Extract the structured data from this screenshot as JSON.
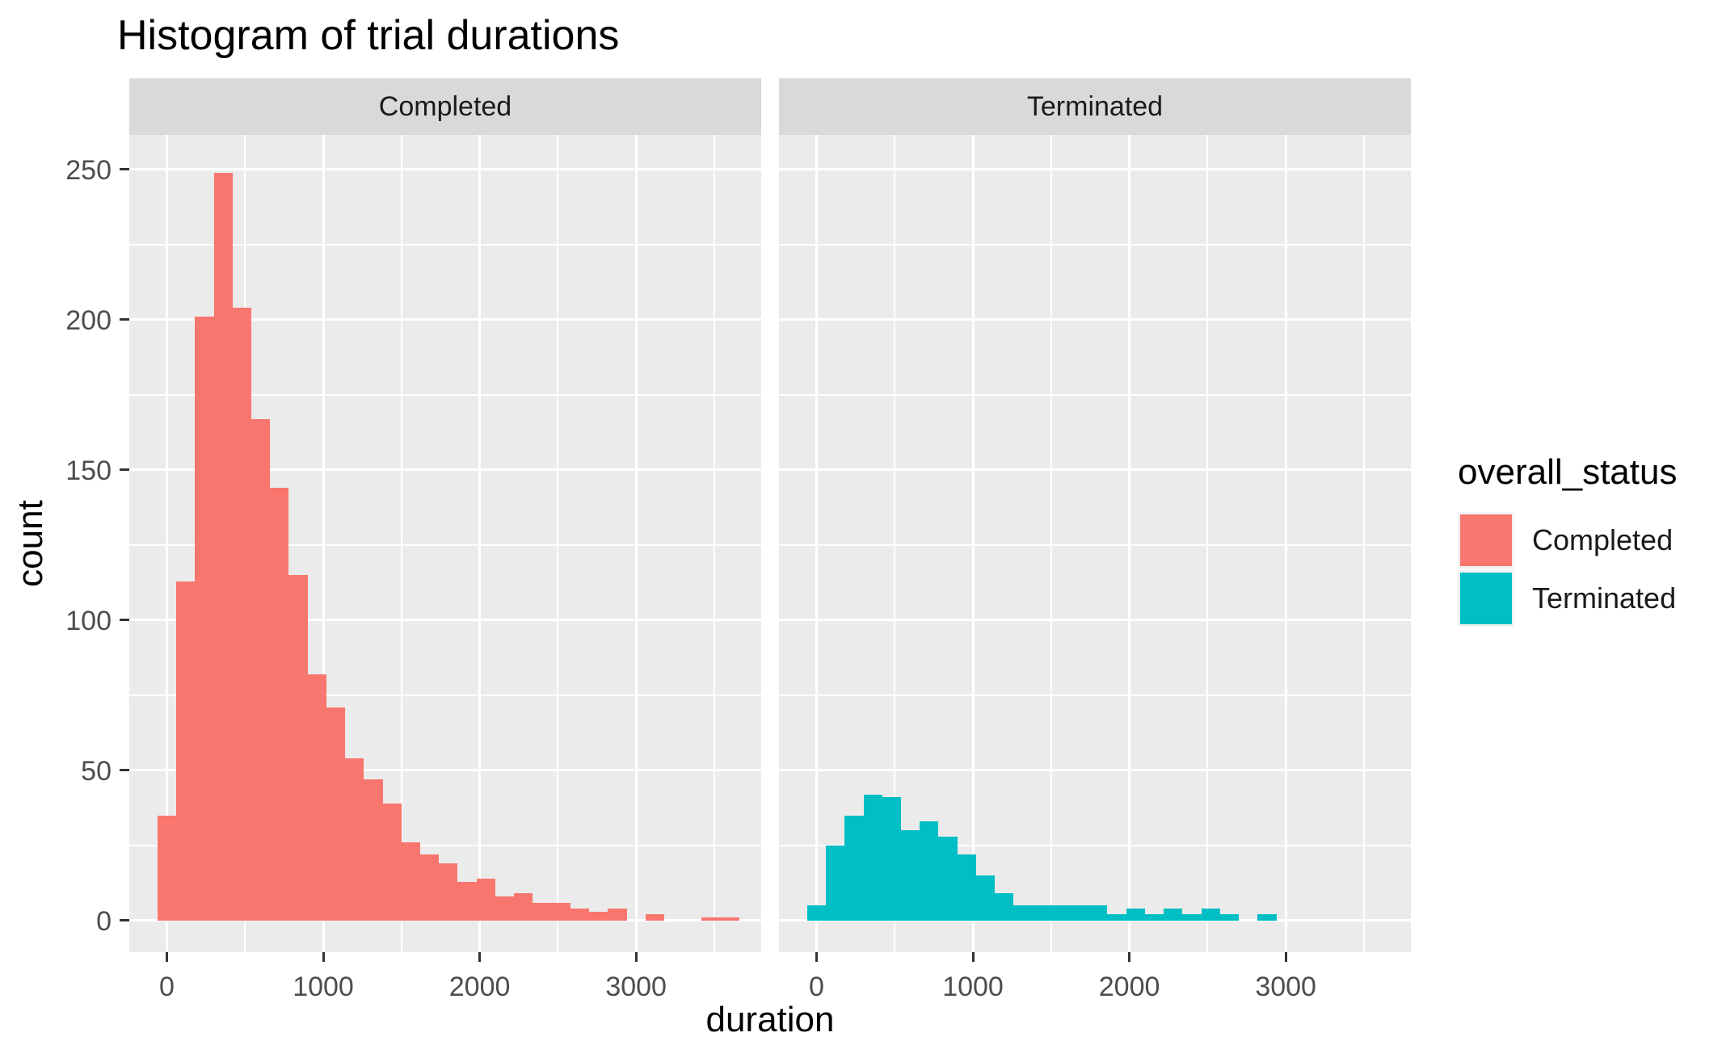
{
  "title": "Histogram of trial durations",
  "colors": {
    "completed": "#F8766D",
    "terminated": "#00BFC4",
    "panel_bg": "#EBEBEB",
    "strip_bg": "#D9D9D9",
    "grid": "#FFFFFF",
    "axis_text": "#4D4D4D",
    "tick_mark": "#333333"
  },
  "legend": {
    "title": "overall_status",
    "items": [
      {
        "label": "Completed",
        "color": "#F8766D"
      },
      {
        "label": "Terminated",
        "color": "#00BFC4"
      }
    ]
  },
  "chart_data": {
    "type": "bar",
    "subtype": "faceted-histogram",
    "title": "Histogram of trial durations",
    "xlabel": "duration",
    "ylabel": "count",
    "legend_title": "overall_status",
    "legend_position": "right",
    "grid": true,
    "bin_start": -60,
    "binwidth": 120,
    "x_domain": [
      -240,
      3800
    ],
    "y_domain": [
      -10.5,
      261.5
    ],
    "x_ticks": [
      0,
      1000,
      2000,
      3000
    ],
    "y_ticks": [
      0,
      50,
      100,
      150,
      200,
      250
    ],
    "x_minor": [
      500,
      1500,
      2500,
      3500
    ],
    "y_minor": [
      25,
      75,
      125,
      175,
      225
    ],
    "facets": [
      {
        "label": "Completed",
        "color": "#F8766D",
        "bin_centers": [
          0,
          120,
          240,
          360,
          480,
          600,
          720,
          840,
          960,
          1080,
          1200,
          1320,
          1440,
          1560,
          1680,
          1800,
          1920,
          2040,
          2160,
          2280,
          2400,
          2520,
          2640,
          2760,
          2880,
          3000,
          3120,
          3240,
          3360,
          3480,
          3600
        ],
        "counts": [
          35,
          113,
          201,
          249,
          204,
          167,
          144,
          115,
          82,
          71,
          54,
          47,
          39,
          26,
          22,
          19,
          13,
          14,
          8,
          9,
          6,
          6,
          4,
          3,
          4,
          0,
          2,
          0,
          0,
          1,
          1
        ]
      },
      {
        "label": "Terminated",
        "color": "#00BFC4",
        "bin_centers": [
          0,
          120,
          240,
          360,
          480,
          600,
          720,
          840,
          960,
          1080,
          1200,
          1320,
          1440,
          1560,
          1680,
          1800,
          1920,
          2040,
          2160,
          2280,
          2400,
          2520,
          2640,
          2760,
          2880
        ],
        "counts": [
          5,
          25,
          35,
          42,
          41,
          30,
          33,
          28,
          22,
          15,
          9,
          5,
          5,
          5,
          5,
          5,
          2,
          4,
          2,
          4,
          2,
          4,
          2,
          0,
          2
        ]
      }
    ]
  }
}
